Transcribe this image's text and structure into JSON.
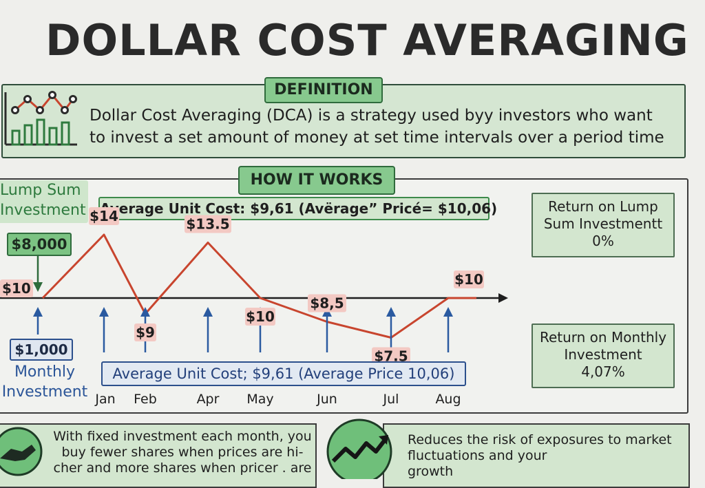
{
  "title": "DOLLAR COST AVERAGING",
  "definition": {
    "label": "DEFINITION",
    "line1": "Dollar Cost Averaging (DCA) is a strategy used byy investors who want",
    "line2": "to invest a set amount of money at set time intervals over a period time"
  },
  "how_it_works": {
    "label": "HOW IT WORKS",
    "avg_top": "Average Unit Cost: $9,61 (Avërage” Pricé= $10,06)",
    "avg_bottom": "Average Unit Cost; $9,61 (Average Price 10,06)",
    "lump_label_1": "Lump Sum",
    "lump_label_2": "Investment",
    "lump_amount": "$8,000",
    "monthly_amount": "$1,000",
    "monthly_label_1": "Monthly",
    "monthly_label_2": "Investment",
    "start_price": "$10"
  },
  "chart_data": {
    "type": "line",
    "categories": [
      "Jan",
      "Feb",
      "Apr",
      "May",
      "Jun",
      "Jul",
      "Aug"
    ],
    "values": [
      14,
      9,
      13.5,
      10,
      8.5,
      7.5,
      10
    ],
    "start_value": 10,
    "price_labels": [
      "$14",
      "$9",
      "$13.5",
      "$10",
      "$8,5",
      "$7.5",
      "$10"
    ],
    "ylim": [
      6,
      15
    ],
    "line_color": "#c8452e",
    "arrow_color": "#2a5aa0"
  },
  "returns": {
    "lump_line1": "Return on Lump",
    "lump_line2": "Sum Investmentt",
    "lump_value": "0%",
    "monthly_line1": "Return on Monthly",
    "monthly_line2": "Investment",
    "monthly_value": "4,07%"
  },
  "cards": {
    "card1_line1": "With fixed investment each month, you",
    "card1_line2": "buy fewer shares when prices are hi-",
    "card1_line3": "cher and more shares when pricer . are",
    "card2_line1": "Reduces the risk of exposures to market",
    "card2_line2": "fluctuations and your",
    "card2_line3": "growth"
  },
  "colors": {
    "accent_green": "#87c98e",
    "panel_green": "#d3e6cf",
    "price_line": "#c8452e",
    "monthly_blue": "#2a5aa0"
  }
}
